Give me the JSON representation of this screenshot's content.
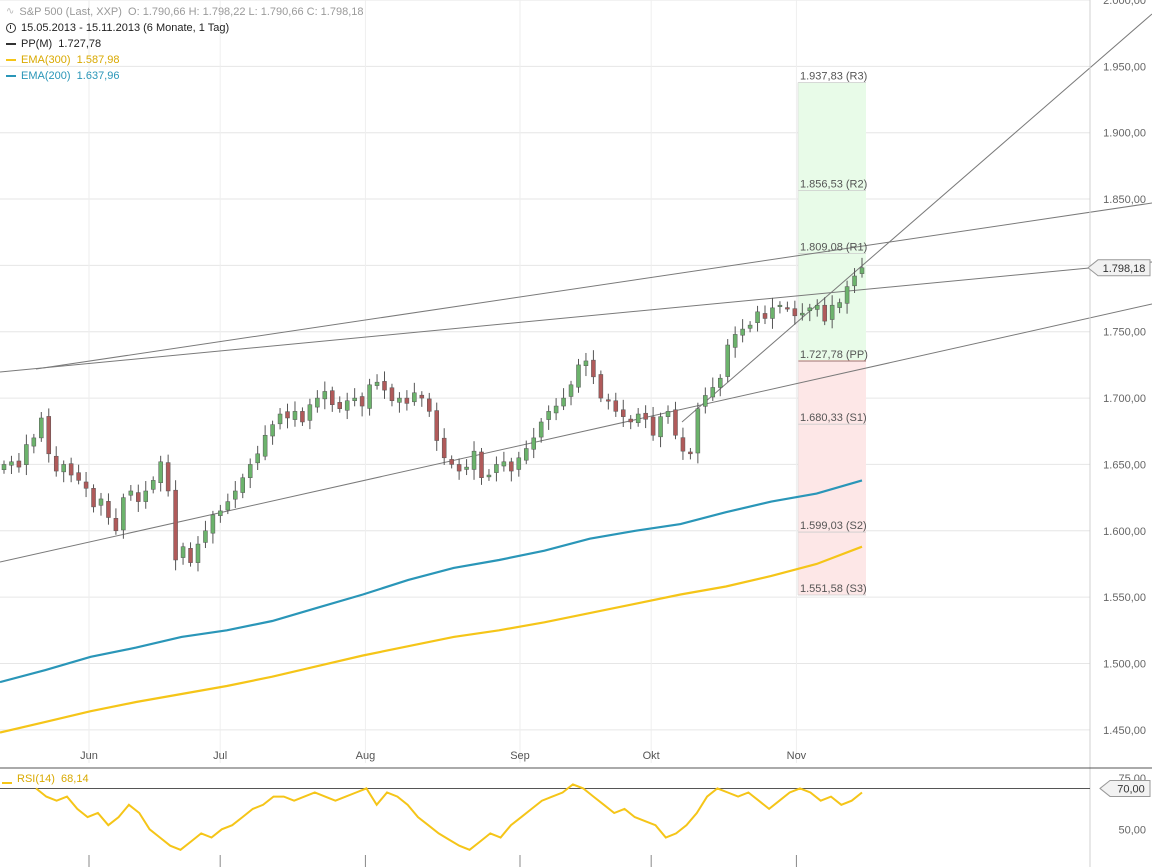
{
  "legend": {
    "title": "S&P 500 (Last, XXP)",
    "ohlc": "O: 1.790,66   H: 1.798,22   L: 1.790,66   C: 1.798,18",
    "period": "15.05.2013 - 15.11.2013 (6 Monate, 1 Tag)",
    "pp": {
      "label": "PP(M)",
      "value": "1.727,78",
      "color": "#333333"
    },
    "ema300": {
      "label": "EMA(300)",
      "value": "1.587,98",
      "color": "#f5c518"
    },
    "ema200": {
      "label": "EMA(200)",
      "value": "1.637,96",
      "color": "#2a96b8"
    }
  },
  "rsi_legend": {
    "label": "RSI(14)",
    "value": "68,14"
  },
  "colors": {
    "up": "#6cb36c",
    "down": "#b05a5a",
    "ema200": "#2a96b8",
    "ema300": "#f5c518",
    "rsi": "#f5c518"
  },
  "chart_data": {
    "type": "line",
    "title": "S&P 500 (Last, XXP)",
    "ylim": [
      1425,
      2000
    ],
    "y_ticks": [
      1450,
      1500,
      1550,
      1600,
      1650,
      1700,
      1750,
      1800,
      1850,
      1900,
      1950,
      2000
    ],
    "y_tick_labels": [
      "1.450,00",
      "1.500,00",
      "1.550,00",
      "1.600,00",
      "1.650,00",
      "1.700,00",
      "1.750,00",
      "1.800,00",
      "1.850,00",
      "1.900,00",
      "1.950,00",
      "2.000,00"
    ],
    "x_ticks": [
      {
        "label": "Jun",
        "date": "2013-06-03"
      },
      {
        "label": "Jul",
        "date": "2013-07-01"
      },
      {
        "label": "Aug",
        "date": "2013-08-01"
      },
      {
        "label": "Sep",
        "date": "2013-09-03"
      },
      {
        "label": "Okt",
        "date": "2013-10-01"
      },
      {
        "label": "Nov",
        "date": "2013-11-01"
      }
    ],
    "close_series": [
      1650,
      1652,
      1648,
      1665,
      1670,
      1685,
      1658,
      1645,
      1650,
      1642,
      1638,
      1632,
      1618,
      1624,
      1610,
      1600,
      1625,
      1630,
      1622,
      1630,
      1638,
      1652,
      1630,
      1578,
      1588,
      1576,
      1590,
      1600,
      1612,
      1615,
      1622,
      1630,
      1640,
      1650,
      1658,
      1672,
      1680,
      1688,
      1685,
      1690,
      1682,
      1695,
      1700,
      1705,
      1695,
      1692,
      1698,
      1700,
      1694,
      1710,
      1712,
      1706,
      1698,
      1700,
      1696,
      1704,
      1700,
      1690,
      1668,
      1655,
      1650,
      1645,
      1648,
      1660,
      1640,
      1642,
      1650,
      1652,
      1645,
      1655,
      1662,
      1670,
      1682,
      1690,
      1694,
      1700,
      1710,
      1725,
      1728,
      1716,
      1700,
      1698,
      1690,
      1686,
      1682,
      1688,
      1684,
      1672,
      1686,
      1690,
      1672,
      1660,
      1658,
      1692,
      1702,
      1708,
      1715,
      1740,
      1748,
      1752,
      1755,
      1765,
      1760,
      1768,
      1770,
      1768,
      1762,
      1764,
      1768,
      1770,
      1758,
      1770,
      1772,
      1784,
      1792,
      1798.18
    ],
    "pivots": [
      {
        "label": "1.937,83 (R3)",
        "value": 1937.83
      },
      {
        "label": "1.856,53 (R2)",
        "value": 1856.53
      },
      {
        "label": "1.809,08 (R1)",
        "value": 1809.08
      },
      {
        "label": "1.727,78 (PP)",
        "value": 1727.78
      },
      {
        "label": "1.680,33 (S1)",
        "value": 1680.33
      },
      {
        "label": "1.599,03 (S2)",
        "value": 1599.03
      },
      {
        "label": "1.551,58 (S3)",
        "value": 1551.58
      }
    ],
    "last_price_label": "1.798,18",
    "last_price": 1798.18,
    "series": [
      {
        "name": "EMA(200)",
        "values": [
          1486,
          1495,
          1505,
          1512,
          1520,
          1525,
          1532,
          1542,
          1552,
          1563,
          1572,
          1578,
          1585,
          1594,
          1600,
          1605,
          1614,
          1622,
          1628,
          1637.96
        ]
      },
      {
        "name": "EMA(300)",
        "values": [
          1448,
          1456,
          1464,
          1471,
          1477,
          1483,
          1490,
          1498,
          1506,
          1513,
          1520,
          1525,
          1531,
          1538,
          1545,
          1552,
          1558,
          1566,
          1575,
          1587.98
        ]
      }
    ],
    "rsi": {
      "name": "RSI(14)",
      "ylim": [
        35,
        80
      ],
      "ticks": [
        50,
        75
      ],
      "tick_labels": [
        "50,00",
        "75,00"
      ],
      "level": 70,
      "level_label": "70,00",
      "values": [
        70,
        66,
        64,
        66,
        60,
        56,
        58,
        52,
        56,
        62,
        58,
        50,
        46,
        42,
        40,
        44,
        48,
        46,
        50,
        52,
        56,
        60,
        62,
        66,
        66,
        64,
        66,
        68,
        66,
        64,
        66,
        68,
        70,
        62,
        68,
        66,
        62,
        56,
        52,
        48,
        45,
        42,
        40,
        44,
        48,
        46,
        52,
        56,
        60,
        64,
        66,
        68,
        72,
        70,
        66,
        62,
        58,
        60,
        56,
        54,
        52,
        46,
        48,
        52,
        58,
        66,
        70,
        68,
        66,
        68,
        64,
        60,
        64,
        68,
        70,
        68,
        64,
        66,
        62,
        64,
        68
      ]
    }
  }
}
